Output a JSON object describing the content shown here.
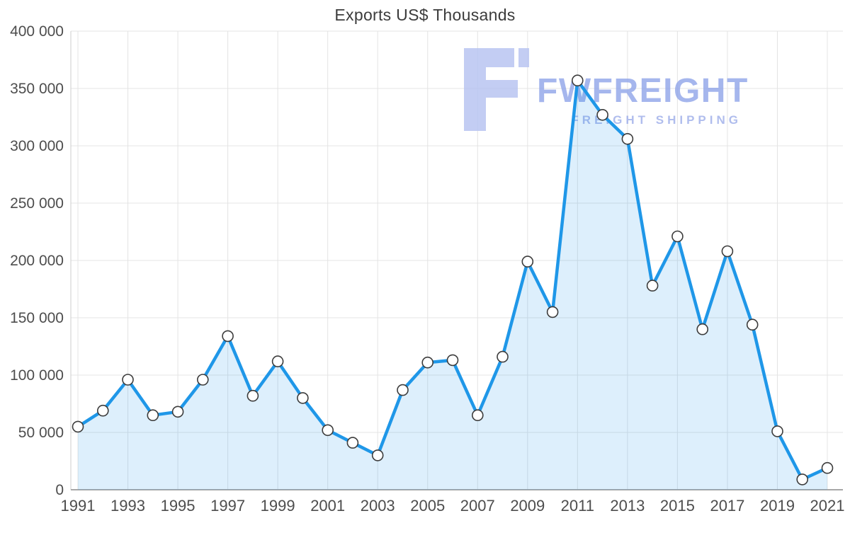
{
  "title": "Exports US$ Thousands",
  "watermark": {
    "brand": "FWFREIGHT",
    "tagline": "FREIGHT SHIPPING",
    "logo_color": "#b6c3f1",
    "brand_color": "#8da2e9",
    "tagline_color": "#9aabe9"
  },
  "chart_data": {
    "type": "area",
    "title": "Exports US$ Thousands",
    "x": [
      1991,
      1992,
      1993,
      1994,
      1995,
      1996,
      1997,
      1998,
      1999,
      2000,
      2001,
      2002,
      2003,
      2004,
      2005,
      2006,
      2007,
      2008,
      2009,
      2010,
      2011,
      2012,
      2013,
      2014,
      2015,
      2016,
      2017,
      2018,
      2019,
      2020,
      2021
    ],
    "values": [
      55000,
      69000,
      96000,
      65000,
      68000,
      96000,
      134000,
      82000,
      112000,
      80000,
      52000,
      41000,
      30000,
      87000,
      111000,
      113000,
      65000,
      116000,
      199000,
      155000,
      357000,
      327000,
      306000,
      178000,
      221000,
      140000,
      208000,
      144000,
      51000,
      9000,
      19000
    ],
    "ylim": [
      0,
      400000
    ],
    "y_tick_step": 50000,
    "x_tick_step": 2,
    "grid": true,
    "legend": "none",
    "xlabel": "",
    "ylabel": "",
    "line_color": "#1f97e8",
    "fill_color": "rgba(30,150,232,0.15)",
    "marker_fill": "#ffffff",
    "marker_stroke": "#3c3c3c",
    "grid_color": "#e4e4e4",
    "axis_color_left": "#cccccc",
    "axis_color_bottom": "#a8a8a8",
    "tick_color": "#4d4d4d"
  }
}
